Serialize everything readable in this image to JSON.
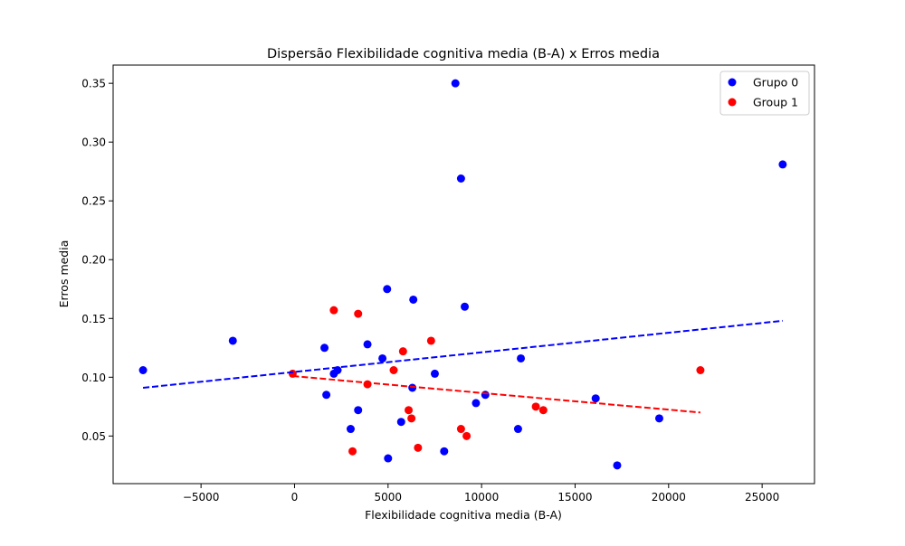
{
  "chart_data": {
    "type": "scatter",
    "title": "Dispersão Flexibilidade cognitiva media (B-A) x Erros media",
    "xlabel": "Flexibilidade cognitiva media (B-A)",
    "ylabel": "Erros media",
    "xlim": [
      -9700,
      27800
    ],
    "ylim": [
      0.0095,
      0.3655
    ],
    "xticks": [
      -5000,
      0,
      5000,
      10000,
      15000,
      20000,
      25000
    ],
    "xtick_labels": [
      "−5000",
      "0",
      "5000",
      "10000",
      "15000",
      "20000",
      "25000"
    ],
    "yticks": [
      0.05,
      0.1,
      0.15,
      0.2,
      0.25,
      0.3,
      0.35
    ],
    "ytick_labels": [
      "0.05",
      "0.10",
      "0.15",
      "0.20",
      "0.25",
      "0.30",
      "0.35"
    ],
    "grid": false,
    "legend_position": "top-right",
    "series": [
      {
        "name": "Grupo 0",
        "color": "#0000ff",
        "points": [
          [
            -8100,
            0.106
          ],
          [
            -3300,
            0.131
          ],
          [
            1600,
            0.125
          ],
          [
            1700,
            0.085
          ],
          [
            2100,
            0.103
          ],
          [
            2300,
            0.106
          ],
          [
            3000,
            0.056
          ],
          [
            3400,
            0.072
          ],
          [
            3900,
            0.128
          ],
          [
            4700,
            0.116
          ],
          [
            4950,
            0.175
          ],
          [
            5000,
            0.031
          ],
          [
            5700,
            0.062
          ],
          [
            6300,
            0.091
          ],
          [
            6350,
            0.166
          ],
          [
            7500,
            0.103
          ],
          [
            8000,
            0.037
          ],
          [
            8600,
            0.35
          ],
          [
            8900,
            0.269
          ],
          [
            9100,
            0.16
          ],
          [
            9700,
            0.078
          ],
          [
            10200,
            0.085
          ],
          [
            11950,
            0.056
          ],
          [
            12100,
            0.116
          ],
          [
            16100,
            0.082
          ],
          [
            17250,
            0.025
          ],
          [
            19500,
            0.065
          ],
          [
            26100,
            0.281
          ]
        ],
        "trend": {
          "x": [
            -8100,
            26100
          ],
          "y": [
            0.091,
            0.148
          ]
        }
      },
      {
        "name": "Group 1",
        "color": "#ff0000",
        "points": [
          [
            -100,
            0.103
          ],
          [
            2100,
            0.157
          ],
          [
            3100,
            0.037
          ],
          [
            3400,
            0.154
          ],
          [
            3900,
            0.094
          ],
          [
            5300,
            0.106
          ],
          [
            5800,
            0.122
          ],
          [
            6100,
            0.072
          ],
          [
            6250,
            0.065
          ],
          [
            6600,
            0.04
          ],
          [
            7300,
            0.131
          ],
          [
            8900,
            0.056
          ],
          [
            9200,
            0.05
          ],
          [
            12900,
            0.075
          ],
          [
            13300,
            0.072
          ],
          [
            21700,
            0.106
          ]
        ],
        "trend": {
          "x": [
            -100,
            21700
          ],
          "y": [
            0.101,
            0.07
          ]
        }
      }
    ]
  }
}
